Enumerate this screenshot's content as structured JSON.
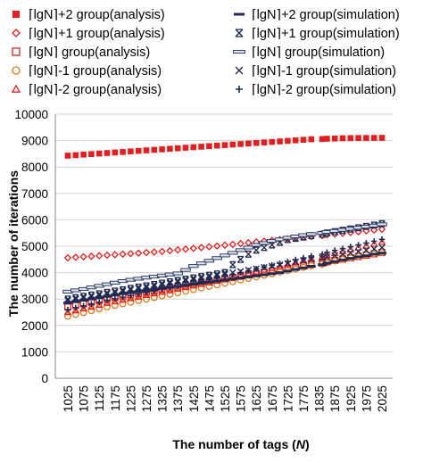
{
  "chart_data": {
    "type": "scatter",
    "xlabel": "The number of tags (N)",
    "ylabel": "The number of iterations",
    "ylim": [
      0,
      10000
    ],
    "y_ticks": [
      0,
      1000,
      2000,
      3000,
      4000,
      5000,
      6000,
      7000,
      8000,
      9000,
      10000
    ],
    "x_tick_labels": [
      "1025",
      "1075",
      "1125",
      "1175",
      "1225",
      "1275",
      "1325",
      "1375",
      "1425",
      "1475",
      "1525",
      "1575",
      "1625",
      "1675",
      "1725",
      "1775",
      "1835",
      "1875",
      "1925",
      "1975",
      "2025"
    ],
    "x": [
      1025,
      1050,
      1075,
      1100,
      1125,
      1150,
      1175,
      1200,
      1225,
      1250,
      1275,
      1300,
      1325,
      1350,
      1375,
      1400,
      1425,
      1450,
      1475,
      1500,
      1525,
      1550,
      1575,
      1600,
      1625,
      1650,
      1675,
      1700,
      1725,
      1750,
      1775,
      1800,
      1835,
      1850,
      1875,
      1900,
      1925,
      1950,
      1975,
      2000,
      2025
    ],
    "grid": "horizontal",
    "legend_position": "top",
    "series": [
      {
        "name": "⌈lgN⌉+2 group(analysis)",
        "marker": "square-filled",
        "color": "#e02020",
        "values": [
          8430,
          8450,
          8470,
          8490,
          8510,
          8530,
          8550,
          8570,
          8590,
          8610,
          8630,
          8650,
          8670,
          8690,
          8710,
          8730,
          8750,
          8770,
          8790,
          8810,
          8830,
          8850,
          8870,
          8890,
          8910,
          8930,
          8950,
          8970,
          8990,
          9010,
          9030,
          9050,
          9060,
          9070,
          9080,
          9090,
          9095,
          9098,
          9100,
          9102,
          9105
        ]
      },
      {
        "name": "⌈lgN⌉+1 group(analysis)",
        "marker": "diamond-open",
        "color": "#e02020",
        "values": [
          4560,
          4580,
          4600,
          4620,
          4640,
          4660,
          4680,
          4700,
          4720,
          4740,
          4760,
          4780,
          4800,
          4830,
          4860,
          4890,
          4920,
          4950,
          4980,
          5010,
          5040,
          5070,
          5100,
          5130,
          5160,
          5190,
          5220,
          5250,
          5280,
          5310,
          5340,
          5370,
          5400,
          5430,
          5460,
          5490,
          5520,
          5550,
          5580,
          5610,
          5640
        ]
      },
      {
        "name": "⌈lgN⌉ group(analysis)",
        "marker": "square-open",
        "color": "#e02020",
        "values": [
          2700,
          2760,
          2820,
          2880,
          2940,
          3000,
          3060,
          3110,
          3160,
          3210,
          3260,
          3310,
          3360,
          3410,
          3460,
          3510,
          3560,
          3610,
          3660,
          3710,
          3760,
          3810,
          3860,
          3910,
          3960,
          4010,
          4060,
          4110,
          4160,
          4210,
          4260,
          4310,
          4360,
          4410,
          4460,
          4510,
          4560,
          4610,
          4660,
          4710,
          4760
        ]
      },
      {
        "name": "⌈lgN⌉-1 group(analysis)",
        "marker": "circle-open",
        "color": "#e07818",
        "values": [
          2350,
          2420,
          2490,
          2560,
          2630,
          2700,
          2760,
          2820,
          2880,
          2940,
          3000,
          3060,
          3120,
          3180,
          3240,
          3300,
          3360,
          3420,
          3480,
          3540,
          3600,
          3660,
          3720,
          3780,
          3840,
          3900,
          3960,
          4020,
          4080,
          4140,
          4200,
          4260,
          4320,
          4380,
          4440,
          4500,
          4560,
          4620,
          4680,
          4720,
          4760
        ]
      },
      {
        "name": "⌈lgN⌉-2 group(analysis)",
        "marker": "triangle-open",
        "color": "#e02020",
        "values": [
          2500,
          2570,
          2640,
          2710,
          2780,
          2850,
          2910,
          2970,
          3030,
          3090,
          3150,
          3210,
          3270,
          3330,
          3390,
          3450,
          3510,
          3570,
          3630,
          3690,
          3760,
          3830,
          3900,
          3970,
          4040,
          4110,
          4180,
          4250,
          4320,
          4390,
          4460,
          4530,
          4600,
          4670,
          4740,
          4810,
          4880,
          4950,
          5020,
          5090,
          5160
        ]
      },
      {
        "name": "⌈lgN⌉+2 group(simulation)",
        "marker": "dash-thick",
        "color": "#1f2a52",
        "values": [
          2850,
          2900,
          2950,
          3000,
          3050,
          3100,
          3150,
          3200,
          3240,
          3280,
          3320,
          3360,
          3400,
          3440,
          3480,
          3520,
          3560,
          3600,
          3640,
          3680,
          3720,
          3760,
          3800,
          3840,
          3880,
          3920,
          3960,
          4000,
          4060,
          4120,
          4180,
          4240,
          4300,
          4360,
          4420,
          4480,
          4540,
          4600,
          4640,
          4700,
          4740
        ]
      },
      {
        "name": "⌈lgN⌉+1 group(simulation)",
        "marker": "asterisk",
        "color": "#1f2a52",
        "values": [
          3000,
          3050,
          3100,
          3150,
          3200,
          3250,
          3300,
          3350,
          3400,
          3450,
          3500,
          3550,
          3600,
          3650,
          3700,
          3750,
          3800,
          3850,
          3900,
          3950,
          4000,
          4300,
          4500,
          4700,
          4850,
          4950,
          5050,
          5150,
          5250,
          5300,
          5350,
          5400,
          5450,
          5500,
          5550,
          5600,
          5650,
          5700,
          5750,
          5800,
          5850
        ]
      },
      {
        "name": "⌈lgN⌉ group(simulation)",
        "marker": "dash",
        "color": "#1f2a52",
        "values": [
          3280,
          3330,
          3380,
          3440,
          3500,
          3560,
          3620,
          3680,
          3730,
          3770,
          3810,
          3850,
          3890,
          3930,
          3970,
          4100,
          4250,
          4350,
          4450,
          4550,
          4650,
          4750,
          4850,
          4950,
          5050,
          5120,
          5200,
          5260,
          5320,
          5370,
          5420,
          5460,
          5500,
          5540,
          5580,
          5620,
          5660,
          5700,
          5740,
          5780,
          5830
        ]
      },
      {
        "name": "⌈lgN⌉-1 group(simulation)",
        "marker": "x",
        "color": "#1f2a52",
        "values": [
          2950,
          3000,
          3050,
          3100,
          3150,
          3200,
          3250,
          3300,
          3350,
          3400,
          3450,
          3500,
          3550,
          3600,
          3650,
          3700,
          3750,
          3800,
          3850,
          3900,
          3950,
          4000,
          4050,
          4100,
          4150,
          4200,
          4250,
          4300,
          4350,
          4400,
          4450,
          4500,
          4550,
          4600,
          4650,
          4700,
          4750,
          4800,
          4850,
          4900,
          4950
        ]
      },
      {
        "name": "⌈lgN⌉-2 group(simulation)",
        "marker": "plus",
        "color": "#1f2a52",
        "values": [
          2600,
          2670,
          2740,
          2810,
          2880,
          2950,
          3010,
          3070,
          3130,
          3190,
          3250,
          3310,
          3370,
          3430,
          3490,
          3550,
          3610,
          3670,
          3730,
          3790,
          3860,
          3930,
          4000,
          4070,
          4140,
          4210,
          4280,
          4350,
          4420,
          4490,
          4560,
          4630,
          4700,
          4770,
          4840,
          4910,
          4980,
          5050,
          5120,
          5190,
          5260
        ]
      }
    ]
  }
}
